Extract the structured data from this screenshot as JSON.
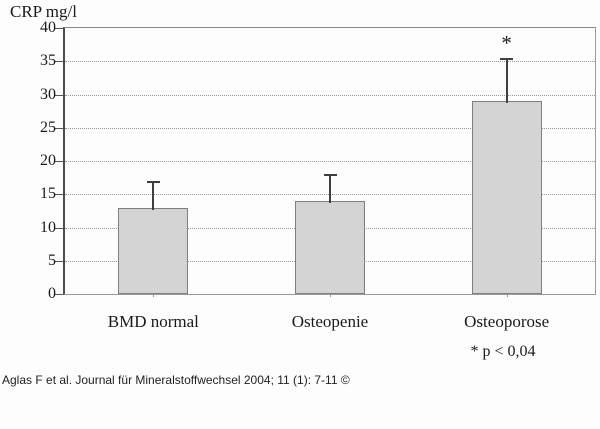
{
  "chart": {
    "y_axis_title": "CRP mg/l",
    "footnote": "* p < 0,04"
  },
  "footer": {
    "citation": "Aglas F et al. Journal für Mineralstoffwechsel 2004; 11 (1): 7-11 ©"
  },
  "chart_data": {
    "type": "bar",
    "title": "CRP mg/l",
    "ylabel": "CRP mg/l",
    "xlabel": "",
    "categories": [
      "BMD normal",
      "Osteopenie",
      "Osteoporose"
    ],
    "values": [
      13,
      14,
      29
    ],
    "error_upper": [
      17,
      18,
      35.5
    ],
    "ylim": [
      0,
      40
    ],
    "yticks": [
      0,
      5,
      10,
      15,
      20,
      25,
      30,
      35,
      40
    ],
    "grid": "horizontal dotted lines at each 5-unit tick",
    "legend": "none",
    "annotations": [
      {
        "text": "*",
        "category_index": 2,
        "meaning": "statistically significant"
      }
    ],
    "footnote": "* p < 0,04",
    "colors": {
      "bar_fill": "#d4d4d4",
      "bar_border": "#7f7f7f",
      "error_bar": "#3f3f3f",
      "gridline": "#999999",
      "axis": "#555555",
      "text": "#1a1a1a",
      "background": "#fdfdfd"
    }
  }
}
